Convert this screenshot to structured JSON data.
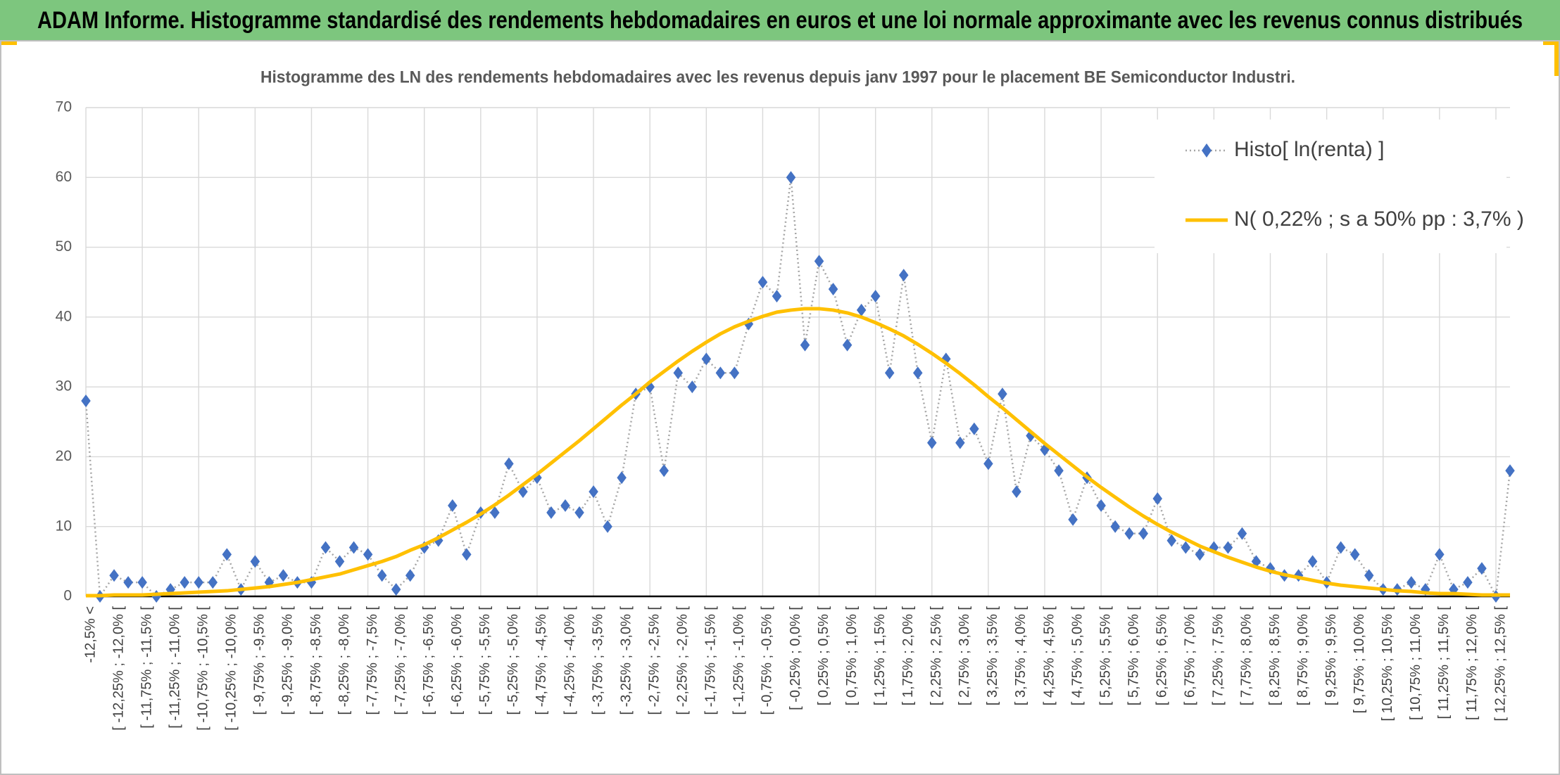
{
  "chart_data": {
    "type": "line",
    "title": "ADAM Informe. Histogramme standardisé des rendements hebdomadaires en euros et une loi normale approximante avec les revenus connus distribués",
    "subtitle": "Histogramme des LN des rendements hebdomadaires avec les revenus depuis janv 1997 pour le placement BE Semiconductor Industri.",
    "categories": [
      "-12,5% <",
      null,
      "[ -12,25% ; -12,0% [",
      null,
      "[ -11,75% ; -11,5% [",
      null,
      "[ -11,25% ; -11,0% [",
      null,
      "[ -10,75% ; -10,5% [",
      null,
      "[ -10,25% ; -10,0% [",
      null,
      "[ -9,75% ; -9,5% [",
      null,
      "[ -9,25% ; -9,0% [",
      null,
      "[ -8,75% ; -8,5% [",
      null,
      "[ -8,25% ; -8,0% [",
      null,
      "[ -7,75% ; -7,5% [",
      null,
      "[ -7,25% ; -7,0% [",
      null,
      "[ -6,75% ; -6,5% [",
      null,
      "[ -6,25% ; -6,0% [",
      null,
      "[ -5,75% ; -5,5% [",
      null,
      "[ -5,25% ; -5,0% [",
      null,
      "[ -4,75% ; -4,5% [",
      null,
      "[ -4,25% ; -4,0% [",
      null,
      "[ -3,75% ; -3,5% [",
      null,
      "[ -3,25% ; -3,0% [",
      null,
      "[ -2,75% ; -2,5% [",
      null,
      "[ -2,25% ; -2,0% [",
      null,
      "[ -1,75% ; -1,5% [",
      null,
      "[ -1,25% ; -1,0% [",
      null,
      "[ -0,75% ; -0,5% [",
      null,
      "[ -0,25% ; 0,0% [",
      null,
      "[ 0,25% ; 0,5% [",
      null,
      "[ 0,75% ; 1,0% [",
      null,
      "[ 1,25% ; 1,5% [",
      null,
      "[ 1,75% ; 2,0% [",
      null,
      "[ 2,25% ; 2,5% [",
      null,
      "[ 2,75% ; 3,0% [",
      null,
      "[ 3,25% ; 3,5% [",
      null,
      "[ 3,75% ; 4,0% [",
      null,
      "[ 4,25% ; 4,5% [",
      null,
      "[ 4,75% ; 5,0% [",
      null,
      "[ 5,25% ; 5,5% [",
      null,
      "[ 5,75% ; 6,0% [",
      null,
      "[ 6,25% ; 6,5% [",
      null,
      "[ 6,75% ; 7,0% [",
      null,
      "[ 7,25% ; 7,5% [",
      null,
      "[ 7,75% ; 8,0% [",
      null,
      "[ 8,25% ; 8,5% [",
      null,
      "[ 8,75% ; 9,0% [",
      null,
      "[ 9,25% ; 9,5% [",
      null,
      "[ 9,75% ; 10,0% [",
      null,
      "[ 10,25% ; 10,5% [",
      null,
      "[ 10,75% ; 11,0% [",
      null,
      "[ 11,25% ; 11,5% [",
      null,
      "[ 11,75% ; 12,0% [",
      null,
      "[ 12,25% ; 12,5% [",
      null
    ],
    "series": [
      {
        "name": "Histo[ ln(renta) ]",
        "color": "#4472c4",
        "line_color": "#a6a6a6",
        "values": [
          28,
          0,
          3,
          2,
          2,
          0,
          1,
          2,
          2,
          2,
          6,
          1,
          5,
          2,
          3,
          2,
          2,
          7,
          5,
          7,
          6,
          3,
          1,
          3,
          7,
          8,
          13,
          6,
          12,
          12,
          19,
          15,
          17,
          12,
          13,
          12,
          15,
          10,
          17,
          29,
          30,
          18,
          32,
          30,
          34,
          32,
          32,
          39,
          45,
          43,
          60,
          36,
          48,
          44,
          36,
          41,
          43,
          32,
          46,
          32,
          22,
          34,
          22,
          24,
          19,
          29,
          15,
          23,
          21,
          18,
          11,
          17,
          13,
          10,
          9,
          9,
          14,
          8,
          7,
          6,
          7,
          7,
          9,
          5,
          4,
          3,
          3,
          5,
          2,
          7,
          6,
          3,
          1,
          1,
          2,
          1,
          6,
          1,
          2,
          4,
          0,
          18
        ]
      },
      {
        "name": "N( 0,22% ; s a 50% pp : 3,7% )",
        "color": "#ffc000",
        "values": [
          0.1,
          0.1,
          0.2,
          0.2,
          0.2,
          0.3,
          0.4,
          0.5,
          0.6,
          0.7,
          0.8,
          1.0,
          1.2,
          1.4,
          1.7,
          2.0,
          2.4,
          2.8,
          3.2,
          3.8,
          4.4,
          5.0,
          5.7,
          6.6,
          7.4,
          8.4,
          9.5,
          10.6,
          11.8,
          13.1,
          14.5,
          16.0,
          17.5,
          19.1,
          20.7,
          22.3,
          24.0,
          25.7,
          27.4,
          29.0,
          30.7,
          32.2,
          33.7,
          35.1,
          36.4,
          37.6,
          38.6,
          39.4,
          40.1,
          40.7,
          41.0,
          41.2,
          41.2,
          41.0,
          40.6,
          40.0,
          39.2,
          38.3,
          37.3,
          36.1,
          34.8,
          33.4,
          31.9,
          30.3,
          28.6,
          27.0,
          25.3,
          23.6,
          21.9,
          20.3,
          18.7,
          17.1,
          15.6,
          14.2,
          12.8,
          11.5,
          10.3,
          9.2,
          8.2,
          7.2,
          6.4,
          5.6,
          4.9,
          4.2,
          3.6,
          3.1,
          2.7,
          2.3,
          1.9,
          1.6,
          1.4,
          1.2,
          1.0,
          0.8,
          0.7,
          0.5,
          0.4,
          0.4,
          0.3,
          0.2,
          0.2,
          0.2
        ]
      }
    ],
    "ylim": [
      0,
      70
    ],
    "yticks": [
      0,
      10,
      20,
      30,
      40,
      50,
      60,
      70
    ],
    "grid": true,
    "legend": "top-right"
  }
}
